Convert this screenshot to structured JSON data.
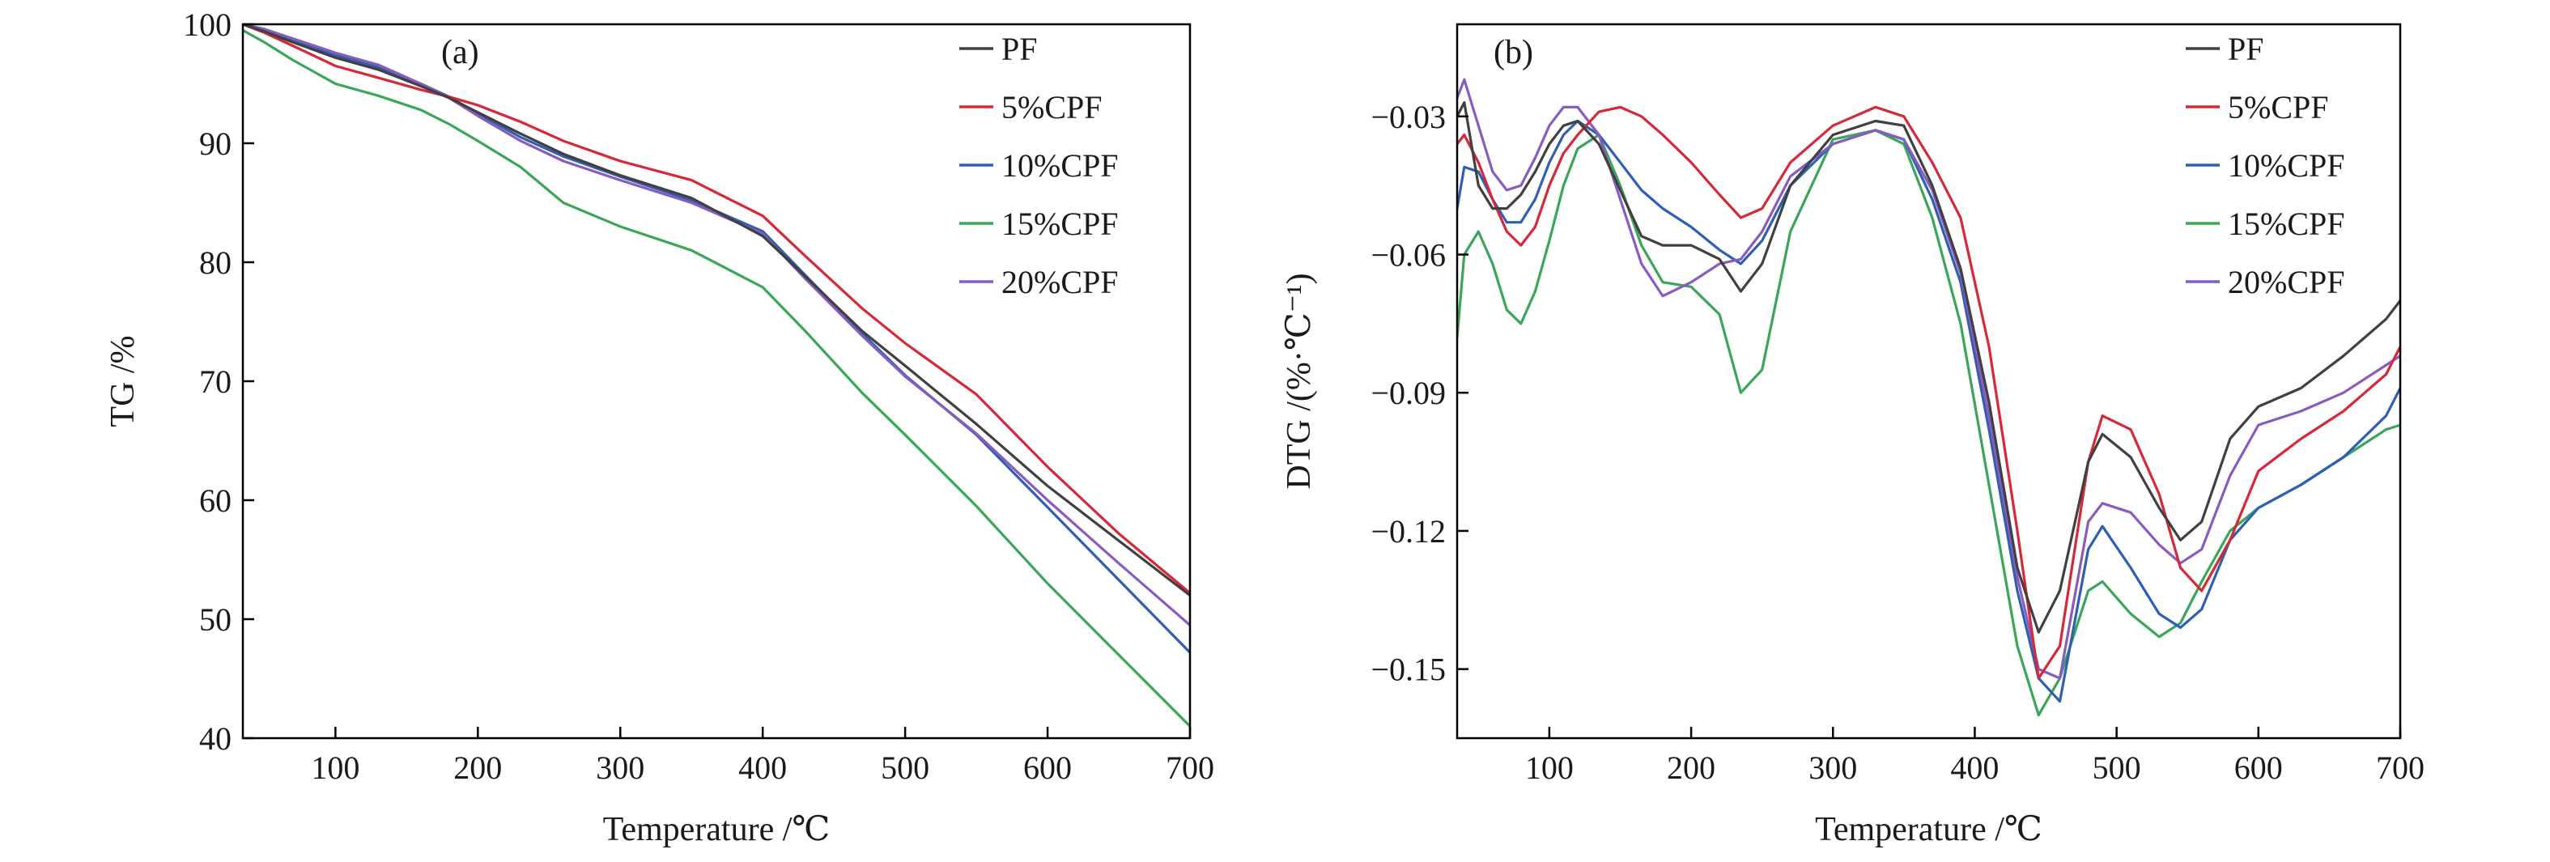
{
  "colors": {
    "PF": "#404040",
    "5%CPF": "#d62839",
    "10%CPF": "#2f5fb3",
    "15%CPF": "#3aa65a",
    "20%CPF": "#8a5bbf"
  },
  "chart_data": [
    {
      "type": "line",
      "panel_label": "(a)",
      "title": "",
      "xlabel": "Temperature /℃",
      "ylabel": "TG /%",
      "xlim": [
        35,
        700
      ],
      "ylim": [
        40,
        100
      ],
      "xticks": [
        100,
        200,
        300,
        400,
        500,
        600,
        700
      ],
      "yticks": [
        40,
        50,
        60,
        70,
        80,
        90,
        100
      ],
      "grid": false,
      "legend_position": "top-right",
      "legend": [
        "PF",
        "5%CPF",
        "10%CPF",
        "15%CPF",
        "20%CPF"
      ],
      "series": [
        {
          "name": "PF",
          "x": [
            35,
            50,
            70,
            100,
            130,
            160,
            180,
            200,
            230,
            260,
            300,
            350,
            400,
            430,
            470,
            500,
            550,
            600,
            650,
            700
          ],
          "y": [
            100,
            99.4,
            98.5,
            97.2,
            96.2,
            94.8,
            93.8,
            92.6,
            90.8,
            89.1,
            87.3,
            85.4,
            82.2,
            78.8,
            74.2,
            71.3,
            66.4,
            61.2,
            56.6,
            52.0
          ]
        },
        {
          "name": "5%CPF",
          "x": [
            35,
            50,
            70,
            100,
            130,
            160,
            180,
            200,
            230,
            260,
            300,
            350,
            400,
            430,
            470,
            500,
            550,
            600,
            650,
            700
          ],
          "y": [
            100,
            99.3,
            98.2,
            96.5,
            95.5,
            94.5,
            93.9,
            93.2,
            91.8,
            90.2,
            88.5,
            86.9,
            83.9,
            80.5,
            76.1,
            73.2,
            68.9,
            62.8,
            57.2,
            52.2
          ]
        },
        {
          "name": "10%CPF",
          "x": [
            35,
            50,
            70,
            100,
            130,
            160,
            180,
            200,
            230,
            260,
            300,
            350,
            400,
            430,
            470,
            500,
            550,
            600,
            650,
            700
          ],
          "y": [
            100,
            99.6,
            98.7,
            97.4,
            96.4,
            95.0,
            93.9,
            92.5,
            90.5,
            88.9,
            87.2,
            85.2,
            82.6,
            78.9,
            74.0,
            70.5,
            65.5,
            59.4,
            53.3,
            47.2
          ]
        },
        {
          "name": "15%CPF",
          "x": [
            35,
            50,
            70,
            100,
            130,
            160,
            180,
            200,
            230,
            260,
            300,
            350,
            400,
            430,
            470,
            500,
            550,
            600,
            650,
            700
          ],
          "y": [
            99.5,
            98.5,
            97.0,
            95.0,
            94.0,
            92.8,
            91.6,
            90.2,
            88.0,
            85.0,
            83.0,
            81.0,
            77.9,
            74.2,
            69.0,
            65.5,
            59.5,
            53.0,
            47.0,
            41.0
          ]
        },
        {
          "name": "20%CPF",
          "x": [
            35,
            50,
            70,
            100,
            130,
            160,
            180,
            200,
            230,
            260,
            300,
            350,
            400,
            430,
            470,
            500,
            550,
            600,
            650,
            700
          ],
          "y": [
            100,
            99.6,
            98.8,
            97.6,
            96.6,
            95.0,
            93.8,
            92.3,
            90.2,
            88.5,
            86.9,
            85.0,
            82.4,
            78.6,
            73.8,
            70.4,
            65.6,
            60.0,
            54.7,
            49.5
          ]
        }
      ]
    },
    {
      "type": "line",
      "panel_label": "(b)",
      "title": "",
      "xlabel": "Temperature /℃",
      "ylabel": "DTG /(%·℃⁻¹)",
      "xlim": [
        35,
        700
      ],
      "ylim": [
        -0.165,
        -0.01
      ],
      "xticks": [
        100,
        200,
        300,
        400,
        500,
        600,
        700
      ],
      "yticks": [
        -0.03,
        -0.06,
        -0.09,
        -0.12,
        -0.15
      ],
      "ytick_labels": [
        "−0.03",
        "−0.06",
        "−0.09",
        "−0.12",
        "−0.15"
      ],
      "grid": false,
      "legend_position": "top-right",
      "legend": [
        "PF",
        "5%CPF",
        "10%CPF",
        "15%CPF",
        "20%CPF"
      ],
      "series": [
        {
          "name": "PF",
          "x": [
            35,
            40,
            50,
            60,
            70,
            80,
            90,
            100,
            110,
            120,
            135,
            150,
            165,
            180,
            200,
            220,
            235,
            250,
            270,
            300,
            330,
            350,
            370,
            390,
            410,
            430,
            445,
            460,
            480,
            490,
            510,
            530,
            545,
            560,
            580,
            600,
            630,
            660,
            690,
            700
          ],
          "y": [
            -0.03,
            -0.027,
            -0.045,
            -0.05,
            -0.05,
            -0.047,
            -0.042,
            -0.036,
            -0.032,
            -0.031,
            -0.036,
            -0.046,
            -0.056,
            -0.058,
            -0.058,
            -0.061,
            -0.068,
            -0.062,
            -0.045,
            -0.034,
            -0.031,
            -0.032,
            -0.045,
            -0.063,
            -0.092,
            -0.128,
            -0.142,
            -0.133,
            -0.105,
            -0.099,
            -0.104,
            -0.115,
            -0.122,
            -0.118,
            -0.1,
            -0.093,
            -0.089,
            -0.082,
            -0.074,
            -0.07
          ]
        },
        {
          "name": "5%CPF",
          "x": [
            35,
            40,
            50,
            60,
            70,
            80,
            90,
            100,
            110,
            120,
            135,
            150,
            165,
            180,
            200,
            220,
            235,
            250,
            270,
            300,
            330,
            350,
            370,
            390,
            410,
            430,
            445,
            460,
            480,
            490,
            510,
            530,
            545,
            560,
            580,
            600,
            630,
            660,
            690,
            700
          ],
          "y": [
            -0.036,
            -0.034,
            -0.04,
            -0.048,
            -0.055,
            -0.058,
            -0.054,
            -0.045,
            -0.038,
            -0.034,
            -0.029,
            -0.028,
            -0.03,
            -0.034,
            -0.04,
            -0.047,
            -0.052,
            -0.05,
            -0.04,
            -0.032,
            -0.028,
            -0.03,
            -0.04,
            -0.052,
            -0.08,
            -0.12,
            -0.152,
            -0.145,
            -0.105,
            -0.095,
            -0.098,
            -0.112,
            -0.128,
            -0.133,
            -0.122,
            -0.107,
            -0.1,
            -0.094,
            -0.086,
            -0.08
          ]
        },
        {
          "name": "10%CPF",
          "x": [
            35,
            40,
            50,
            60,
            70,
            80,
            90,
            100,
            110,
            120,
            135,
            150,
            165,
            180,
            200,
            220,
            235,
            250,
            270,
            300,
            330,
            350,
            370,
            390,
            410,
            430,
            445,
            460,
            480,
            490,
            510,
            530,
            545,
            560,
            580,
            600,
            630,
            660,
            690,
            700
          ],
          "y": [
            -0.05,
            -0.041,
            -0.042,
            -0.048,
            -0.053,
            -0.053,
            -0.048,
            -0.04,
            -0.034,
            -0.031,
            -0.034,
            -0.04,
            -0.046,
            -0.05,
            -0.054,
            -0.059,
            -0.062,
            -0.057,
            -0.045,
            -0.036,
            -0.033,
            -0.035,
            -0.048,
            -0.066,
            -0.098,
            -0.133,
            -0.152,
            -0.157,
            -0.124,
            -0.119,
            -0.128,
            -0.138,
            -0.141,
            -0.137,
            -0.122,
            -0.115,
            -0.11,
            -0.104,
            -0.095,
            -0.089
          ]
        },
        {
          "name": "15%CPF",
          "x": [
            35,
            40,
            50,
            60,
            70,
            80,
            90,
            100,
            110,
            120,
            135,
            150,
            165,
            180,
            200,
            220,
            235,
            250,
            270,
            300,
            330,
            350,
            370,
            390,
            410,
            430,
            445,
            460,
            480,
            490,
            510,
            530,
            545,
            560,
            580,
            600,
            630,
            660,
            690,
            700
          ],
          "y": [
            -0.078,
            -0.06,
            -0.055,
            -0.062,
            -0.072,
            -0.075,
            -0.068,
            -0.057,
            -0.045,
            -0.037,
            -0.034,
            -0.045,
            -0.058,
            -0.066,
            -0.067,
            -0.073,
            -0.09,
            -0.085,
            -0.055,
            -0.035,
            -0.033,
            -0.036,
            -0.052,
            -0.075,
            -0.11,
            -0.145,
            -0.16,
            -0.152,
            -0.133,
            -0.131,
            -0.138,
            -0.143,
            -0.14,
            -0.131,
            -0.12,
            -0.115,
            -0.11,
            -0.104,
            -0.098,
            -0.097
          ]
        },
        {
          "name": "20%CPF",
          "x": [
            35,
            40,
            50,
            60,
            70,
            80,
            90,
            100,
            110,
            120,
            135,
            150,
            165,
            180,
            200,
            220,
            235,
            250,
            270,
            300,
            330,
            350,
            370,
            390,
            410,
            430,
            445,
            460,
            480,
            490,
            510,
            530,
            545,
            560,
            580,
            600,
            630,
            660,
            690,
            700
          ],
          "y": [
            -0.026,
            -0.022,
            -0.032,
            -0.042,
            -0.046,
            -0.045,
            -0.039,
            -0.032,
            -0.028,
            -0.028,
            -0.034,
            -0.048,
            -0.062,
            -0.069,
            -0.066,
            -0.062,
            -0.061,
            -0.055,
            -0.043,
            -0.036,
            -0.033,
            -0.035,
            -0.046,
            -0.064,
            -0.095,
            -0.13,
            -0.15,
            -0.152,
            -0.118,
            -0.114,
            -0.116,
            -0.123,
            -0.127,
            -0.124,
            -0.108,
            -0.097,
            -0.094,
            -0.09,
            -0.084,
            -0.082
          ]
        }
      ]
    }
  ]
}
